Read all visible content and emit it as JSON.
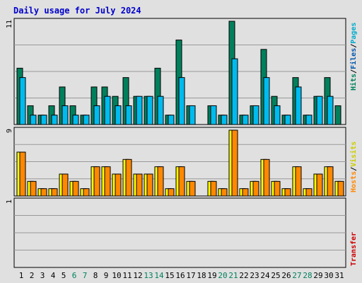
{
  "title": "Daily usage for July 2024",
  "colors": {
    "background": "#e0e0e0",
    "frame": "#000000",
    "gridline": "#999999",
    "hits": "#00805c",
    "files": "#00bbee",
    "pages": "#00aacc",
    "hosts": "#ff8800",
    "visits": "#ffff00",
    "transfer": "#cc0000",
    "title": "#0000cc",
    "weekday_label": "#000000",
    "weekend_label": "#00805c"
  },
  "legend": {
    "hits": "Hits",
    "files": "Files",
    "pages": "Pages",
    "hosts": "Hosts",
    "visits": "Visits",
    "transfer": "Transfer",
    "separator": "/"
  },
  "chart_data": [
    {
      "type": "bar",
      "panel": "hits-files-pages",
      "ymax_label": "11",
      "ylim": [
        0,
        11
      ],
      "categories": [
        "1",
        "2",
        "3",
        "4",
        "5",
        "6",
        "7",
        "8",
        "9",
        "10",
        "11",
        "12",
        "13",
        "14",
        "15",
        "16",
        "17",
        "18",
        "19",
        "20",
        "21",
        "22",
        "23",
        "24",
        "25",
        "26",
        "27",
        "28",
        "29",
        "30",
        "31"
      ],
      "weekend_days": [
        "6",
        "7",
        "13",
        "14",
        "20",
        "21",
        "27",
        "28"
      ],
      "series": [
        {
          "name": "Hits",
          "values": [
            6,
            2,
            1,
            2,
            4,
            2,
            1,
            4,
            4,
            3,
            5,
            3,
            3,
            6,
            1,
            9,
            2,
            0,
            2,
            1,
            11,
            1,
            2,
            8,
            3,
            1,
            5,
            1,
            3,
            5,
            2
          ]
        },
        {
          "name": "Files",
          "values": [
            5,
            1,
            1,
            1,
            2,
            1,
            1,
            2,
            3,
            2,
            2,
            3,
            3,
            3,
            1,
            5,
            2,
            0,
            2,
            1,
            7,
            1,
            2,
            5,
            2,
            1,
            4,
            1,
            3,
            3,
            0
          ]
        }
      ],
      "grid": true
    },
    {
      "type": "bar",
      "panel": "hosts-visits",
      "ymax_label": "9",
      "ylim": [
        0,
        9
      ],
      "series": [
        {
          "name": "Visits",
          "values": [
            6,
            2,
            1,
            1,
            3,
            2,
            1,
            4,
            4,
            3,
            5,
            3,
            3,
            4,
            1,
            4,
            2,
            0,
            2,
            1,
            9,
            1,
            2,
            5,
            2,
            1,
            4,
            1,
            3,
            4,
            2
          ]
        },
        {
          "name": "Hosts",
          "values": [
            6,
            2,
            1,
            1,
            3,
            2,
            1,
            4,
            4,
            3,
            5,
            3,
            3,
            4,
            1,
            4,
            2,
            0,
            2,
            1,
            9,
            1,
            2,
            5,
            2,
            1,
            4,
            1,
            3,
            4,
            2
          ]
        }
      ],
      "grid": true
    },
    {
      "type": "bar",
      "panel": "transfer",
      "ymax_label": "1",
      "ylim": [
        0,
        1
      ],
      "series": [
        {
          "name": "Transfer",
          "values": [
            0,
            0,
            0,
            0,
            0,
            0,
            0,
            0,
            0,
            0,
            0,
            0,
            0,
            0,
            0,
            0,
            0,
            0,
            0,
            0,
            0,
            0,
            0,
            0,
            0,
            0,
            0,
            0,
            0,
            0,
            0
          ]
        }
      ],
      "grid": true
    }
  ]
}
